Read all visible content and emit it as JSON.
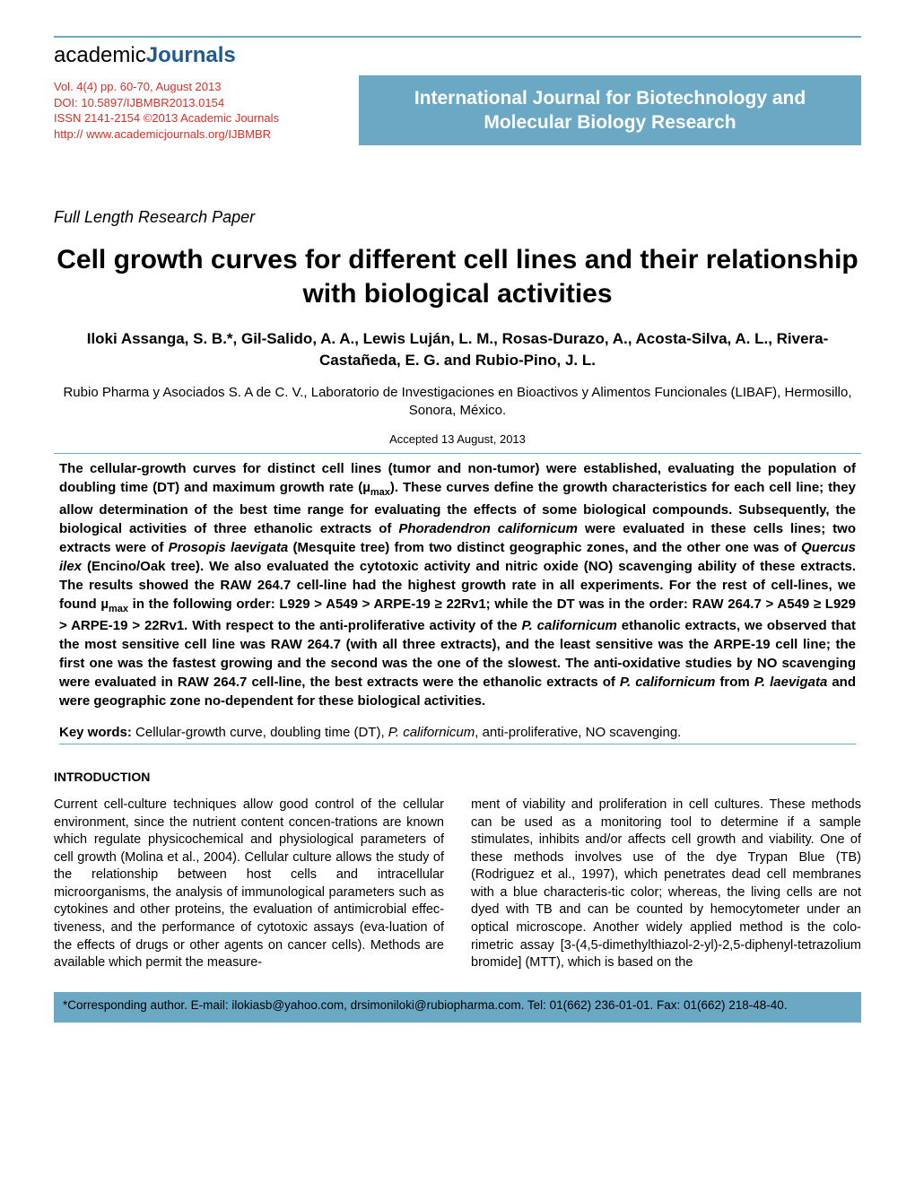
{
  "logo": {
    "part1": "academic",
    "part2": "Journals"
  },
  "pub_info": {
    "line1": "Vol. 4(4) pp. 60-70, August 2013",
    "line2": "DOI: 10.5897/IJBMBR2013.0154",
    "line3": "ISSN 2141-2154 ©2013 Academic Journals",
    "line4": "http:// www.academicjournals.org/IJBMBR"
  },
  "journal_name": "International Journal for Biotechnology and Molecular Biology Research",
  "article_type": "Full Length Research Paper",
  "title": "Cell growth curves for different cell lines and their relationship with biological activities",
  "authors": "Iloki Assanga, S. B.*, Gil-Salido, A. A., Lewis Luján, L. M., Rosas-Durazo, A., Acosta-Silva, A. L., Rivera-Castañeda, E. G. and Rubio-Pino, J. L.",
  "affiliation": "Rubio Pharma y Asociados S. A de C. V., Laboratorio de Investigaciones en Bioactivos y Alimentos Funcionales (LIBAF), Hermosillo, Sonora, México.",
  "accepted": "Accepted 13 August, 2013",
  "abstract_parts": {
    "p1": "The cellular-growth curves for distinct cell lines (tumor and non-tumor) were established, evaluating the population of doubling time (DT) and maximum growth rate (µ",
    "p1_sub": "max",
    "p2": "). These curves define the growth characteristics for each cell line; they allow determination of the best time range for evaluating the effects of some biological compounds. Subsequently, the biological activities of three ethanolic extracts of ",
    "s1": "Phoradendron californicum",
    "p3": " were evaluated in these cells lines; two extracts were of ",
    "s2": "Prosopis laevigata",
    "p4": " (Mesquite tree) from two distinct geographic zones, and the other one was of ",
    "s3": "Quercus ilex",
    "p5": " (Encino/Oak tree). We also evaluated the cytotoxic activity and nitric oxide (NO) scavenging ability of these extracts. The results showed the RAW 264.7 cell-line had the highest growth rate in all experiments. For the rest of cell-lines, we found µ",
    "p5_sub": "max",
    "p6": " in the following order: L929 > A549 > ARPE-19 ≥ 22Rv1; while the DT was in the order: RAW 264.7 > A549 ≥ L929 > ARPE-19 > 22Rv1. With respect to the anti-proliferative activity of the ",
    "s4": "P. californicum",
    "p7": " ethanolic extracts, we observed that the most sensitive cell line was RAW 264.7 (with all three extracts), and the least sensitive was the ARPE-19 cell line; the first one was the fastest growing and the second was the one of the slowest. The anti-oxidative studies by NO scavenging were evaluated in RAW 264.7 cell-line, the best extracts were the ethanolic extracts of ",
    "s5": "P. californicum",
    "p8": " from ",
    "s6": "P. laevigata",
    "p9": " and were geographic zone no-dependent for these biological activities."
  },
  "keywords": {
    "label": "Key words:",
    "p1": " Cellular-growth curve, doubling time (DT), ",
    "s1": "P. californicum",
    "p2": ", anti-proliferative, NO scavenging."
  },
  "section_heading": "INTRODUCTION",
  "body": {
    "col1": "Current cell-culture techniques allow good control of the cellular environment, since the nutrient content concen-trations are known which regulate physicochemical and physiological parameters of cell growth (Molina et al., 2004). Cellular culture allows the study of the relationship between host cells and intracellular microorganisms, the analysis of immunological parameters such as cytokines and other proteins, the evaluation of antimicrobial effec-tiveness, and the performance of cytotoxic assays (eva-luation of the effects of drugs or other agents on cancer cells). Methods are available which permit the measure-",
    "col2": "ment of viability and proliferation in cell cultures. These methods can be used as a monitoring tool to determine if a sample stimulates, inhibits and/or affects cell growth and viability. One of these methods involves use of the dye Trypan Blue (TB) (Rodriguez et al., 1997), which penetrates dead cell membranes with a blue characteris-tic color; whereas, the living cells are not dyed with TB and can be counted by hemocytometer under an optical microscope. Another widely applied method is the colo-rimetric assay [3-(4,5-dimethylthiazol-2-yl)-2,5-diphenyl-tetrazolium bromide] (MTT), which is based on the"
  },
  "footnote": "*Corresponding author. E-mail: ilokiasb@yahoo.com, drsimoniloki@rubiopharma.com. Tel: 01(662) 236-01-01. Fax: 01(662) 218-48-40.",
  "colors": {
    "accent_blue": "#6ba8c4",
    "logo_blue": "#1e5a8e",
    "pub_red": "#d93025",
    "text": "#000000",
    "background": "#ffffff"
  }
}
